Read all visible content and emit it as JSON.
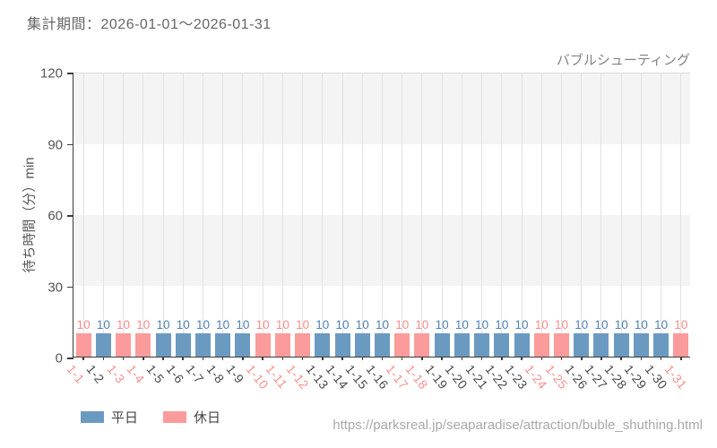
{
  "header": {
    "period_label": "集計期間：2026-01-01〜2026-01-31"
  },
  "footer": {
    "source_url": "https://parksreal.jp/seaparadise/attraction/buble_shuthing.html"
  },
  "chart_data": {
    "type": "bar",
    "title": "バブルシューティング",
    "xlabel": "",
    "ylabel": "待ち時間（分）min",
    "ylim": [
      0,
      120
    ],
    "yticks": [
      0,
      30,
      60,
      90,
      120
    ],
    "grid": "alternating horizontal bands + light vertical gridlines per day",
    "legend_position": "bottom-left",
    "categories": [
      "1-1",
      "1-2",
      "1-3",
      "1-4",
      "1-5",
      "1-6",
      "1-7",
      "1-8",
      "1-9",
      "1-10",
      "1-11",
      "1-12",
      "1-13",
      "1-14",
      "1-15",
      "1-16",
      "1-17",
      "1-18",
      "1-19",
      "1-20",
      "1-21",
      "1-22",
      "1-23",
      "1-24",
      "1-25",
      "1-26",
      "1-27",
      "1-28",
      "1-29",
      "1-30",
      "1-31"
    ],
    "values": [
      10,
      10,
      10,
      10,
      10,
      10,
      10,
      10,
      10,
      10,
      10,
      10,
      10,
      10,
      10,
      10,
      10,
      10,
      10,
      10,
      10,
      10,
      10,
      10,
      10,
      10,
      10,
      10,
      10,
      10,
      10
    ],
    "day_types": [
      "holiday",
      "weekday",
      "holiday",
      "holiday",
      "weekday",
      "weekday",
      "weekday",
      "weekday",
      "weekday",
      "holiday",
      "holiday",
      "holiday",
      "weekday",
      "weekday",
      "weekday",
      "weekday",
      "holiday",
      "holiday",
      "weekday",
      "weekday",
      "weekday",
      "weekday",
      "weekday",
      "holiday",
      "holiday",
      "weekday",
      "weekday",
      "weekday",
      "weekday",
      "weekday",
      "holiday"
    ],
    "value_labels_shown": true,
    "legend": [
      {
        "label": "平日",
        "key": "weekday",
        "color": "#6b9ac1"
      },
      {
        "label": "休日",
        "key": "holiday",
        "color": "#fb9b9b"
      }
    ],
    "colors": {
      "weekday_bar": "#6b9ac1",
      "holiday_bar": "#fb9b9b",
      "weekday_value_label": "#5082b4",
      "holiday_value_label": "#fa8c8c",
      "band_gray": "#f4f4f4",
      "axis": "#3c3c3c"
    }
  }
}
